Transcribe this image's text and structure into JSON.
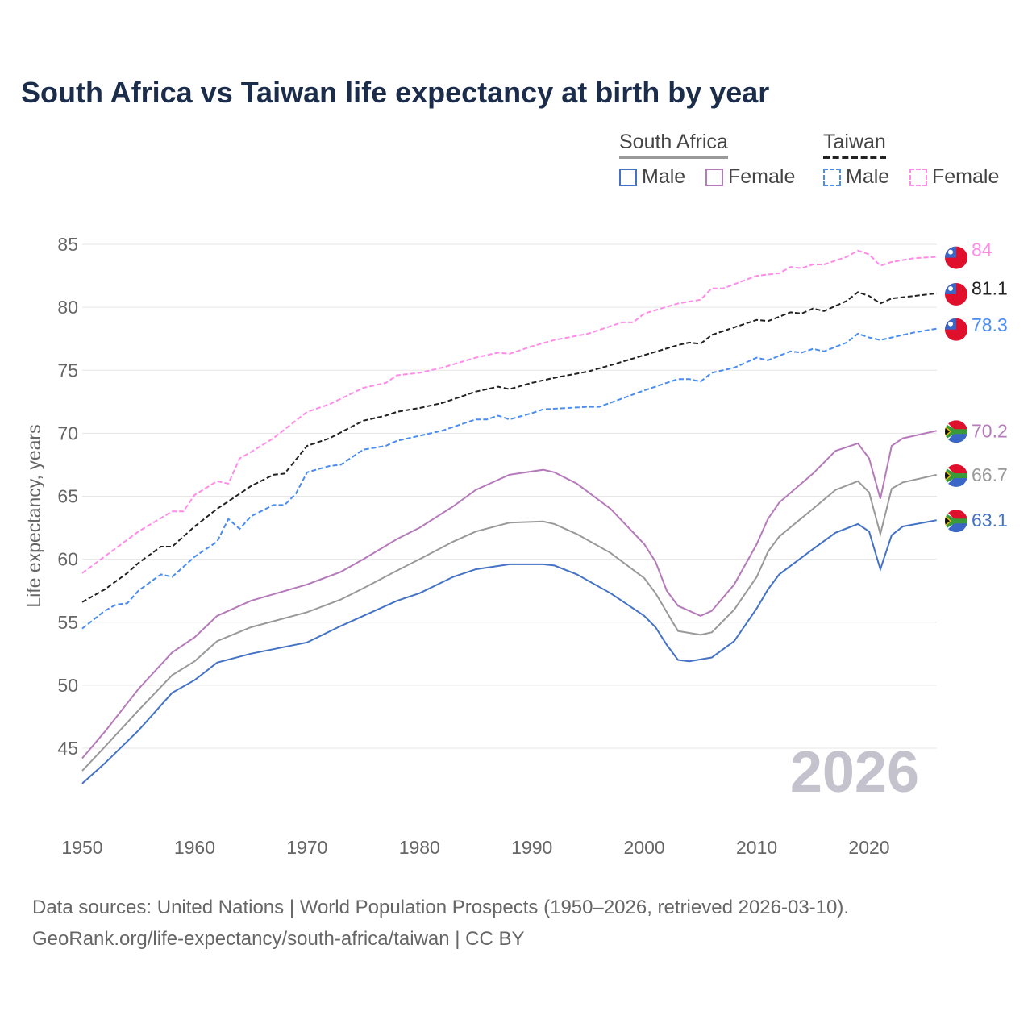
{
  "chart_data": {
    "type": "line",
    "title": "South Africa vs Taiwan life expectancy at birth by year",
    "xlabel": "",
    "ylabel": "Life expectancy, years",
    "xlim": [
      1950,
      2026
    ],
    "ylim": [
      41,
      86
    ],
    "x_ticks": [
      "1950",
      "1960",
      "1970",
      "1980",
      "1990",
      "2000",
      "2010",
      "2020"
    ],
    "y_ticks": [
      "45",
      "50",
      "55",
      "60",
      "65",
      "70",
      "75",
      "80",
      "85"
    ],
    "grid": true,
    "year_watermark": "2026",
    "legend": {
      "position": "top-right",
      "groups": [
        {
          "name": "South Africa",
          "items": [
            "Male",
            "Female"
          ]
        },
        {
          "name": "Taiwan",
          "items": [
            "Male",
            "Female"
          ]
        }
      ]
    },
    "series": [
      {
        "name": "Taiwan Female",
        "country": "Taiwan",
        "color": "#ff8ce8",
        "dashed": true,
        "end_label": "84",
        "points": [
          [
            1950,
            58.9
          ],
          [
            1955,
            62.2
          ],
          [
            1958,
            63.8
          ],
          [
            1959,
            63.8
          ],
          [
            1960,
            65.1
          ],
          [
            1962,
            66.2
          ],
          [
            1963,
            66.0
          ],
          [
            1964,
            68.0
          ],
          [
            1965,
            68.5
          ],
          [
            1967,
            69.6
          ],
          [
            1970,
            71.7
          ],
          [
            1972,
            72.3
          ],
          [
            1975,
            73.6
          ],
          [
            1977,
            74.0
          ],
          [
            1978,
            74.6
          ],
          [
            1980,
            74.8
          ],
          [
            1982,
            75.2
          ],
          [
            1985,
            76.0
          ],
          [
            1987,
            76.4
          ],
          [
            1988,
            76.3
          ],
          [
            1990,
            76.9
          ],
          [
            1992,
            77.4
          ],
          [
            1995,
            77.9
          ],
          [
            1998,
            78.8
          ],
          [
            1999,
            78.8
          ],
          [
            2000,
            79.5
          ],
          [
            2003,
            80.3
          ],
          [
            2005,
            80.6
          ],
          [
            2006,
            81.5
          ],
          [
            2007,
            81.5
          ],
          [
            2010,
            82.5
          ],
          [
            2012,
            82.7
          ],
          [
            2013,
            83.2
          ],
          [
            2014,
            83.1
          ],
          [
            2015,
            83.4
          ],
          [
            2016,
            83.4
          ],
          [
            2018,
            84.0
          ],
          [
            2019,
            84.5
          ],
          [
            2020,
            84.2
          ],
          [
            2021,
            83.3
          ],
          [
            2022,
            83.6
          ],
          [
            2024,
            83.9
          ],
          [
            2026,
            84.0
          ]
        ]
      },
      {
        "name": "Taiwan Total",
        "country": "Taiwan",
        "color": "#222222",
        "dashed": true,
        "end_label": "81.1",
        "points": [
          [
            1950,
            56.6
          ],
          [
            1952,
            57.6
          ],
          [
            1954,
            58.9
          ],
          [
            1955,
            59.7
          ],
          [
            1957,
            61.0
          ],
          [
            1958,
            61.0
          ],
          [
            1960,
            62.6
          ],
          [
            1962,
            64.0
          ],
          [
            1963,
            64.6
          ],
          [
            1965,
            65.8
          ],
          [
            1967,
            66.7
          ],
          [
            1968,
            66.8
          ],
          [
            1970,
            69.0
          ],
          [
            1972,
            69.6
          ],
          [
            1975,
            71.0
          ],
          [
            1977,
            71.4
          ],
          [
            1978,
            71.7
          ],
          [
            1980,
            72.0
          ],
          [
            1982,
            72.4
          ],
          [
            1985,
            73.3
          ],
          [
            1987,
            73.7
          ],
          [
            1988,
            73.5
          ],
          [
            1990,
            74.0
          ],
          [
            1992,
            74.4
          ],
          [
            1995,
            74.9
          ],
          [
            1997,
            75.4
          ],
          [
            2000,
            76.2
          ],
          [
            2003,
            77.0
          ],
          [
            2004,
            77.2
          ],
          [
            2005,
            77.1
          ],
          [
            2006,
            77.8
          ],
          [
            2008,
            78.4
          ],
          [
            2010,
            79.0
          ],
          [
            2011,
            78.9
          ],
          [
            2013,
            79.6
          ],
          [
            2014,
            79.5
          ],
          [
            2015,
            79.9
          ],
          [
            2016,
            79.7
          ],
          [
            2018,
            80.5
          ],
          [
            2019,
            81.2
          ],
          [
            2020,
            80.9
          ],
          [
            2021,
            80.3
          ],
          [
            2022,
            80.7
          ],
          [
            2024,
            80.9
          ],
          [
            2026,
            81.1
          ]
        ]
      },
      {
        "name": "Taiwan Male",
        "country": "Taiwan",
        "color": "#4a8cf0",
        "dashed": true,
        "end_label": "78.3",
        "points": [
          [
            1950,
            54.5
          ],
          [
            1952,
            55.9
          ],
          [
            1953,
            56.4
          ],
          [
            1954,
            56.5
          ],
          [
            1955,
            57.5
          ],
          [
            1957,
            58.8
          ],
          [
            1958,
            58.6
          ],
          [
            1960,
            60.2
          ],
          [
            1962,
            61.4
          ],
          [
            1963,
            63.2
          ],
          [
            1964,
            62.4
          ],
          [
            1965,
            63.4
          ],
          [
            1967,
            64.3
          ],
          [
            1968,
            64.3
          ],
          [
            1969,
            65.2
          ],
          [
            1970,
            66.9
          ],
          [
            1972,
            67.4
          ],
          [
            1973,
            67.5
          ],
          [
            1975,
            68.7
          ],
          [
            1977,
            69.0
          ],
          [
            1978,
            69.4
          ],
          [
            1980,
            69.8
          ],
          [
            1981,
            70.0
          ],
          [
            1982,
            70.2
          ],
          [
            1985,
            71.1
          ],
          [
            1986,
            71.1
          ],
          [
            1987,
            71.4
          ],
          [
            1988,
            71.1
          ],
          [
            1990,
            71.6
          ],
          [
            1991,
            71.9
          ],
          [
            1995,
            72.1
          ],
          [
            1996,
            72.1
          ],
          [
            2000,
            73.4
          ],
          [
            2003,
            74.3
          ],
          [
            2004,
            74.3
          ],
          [
            2005,
            74.1
          ],
          [
            2006,
            74.8
          ],
          [
            2008,
            75.2
          ],
          [
            2010,
            76.0
          ],
          [
            2011,
            75.8
          ],
          [
            2013,
            76.5
          ],
          [
            2014,
            76.4
          ],
          [
            2015,
            76.7
          ],
          [
            2016,
            76.5
          ],
          [
            2018,
            77.2
          ],
          [
            2019,
            77.9
          ],
          [
            2020,
            77.6
          ],
          [
            2021,
            77.4
          ],
          [
            2022,
            77.6
          ],
          [
            2024,
            78.0
          ],
          [
            2026,
            78.3
          ]
        ]
      },
      {
        "name": "South Africa Female",
        "country": "South Africa",
        "color": "#b57aba",
        "dashed": false,
        "end_label": "70.2",
        "points": [
          [
            1950,
            44.2
          ],
          [
            1952,
            46.3
          ],
          [
            1955,
            49.7
          ],
          [
            1958,
            52.6
          ],
          [
            1960,
            53.8
          ],
          [
            1962,
            55.5
          ],
          [
            1965,
            56.7
          ],
          [
            1970,
            58.0
          ],
          [
            1973,
            59.0
          ],
          [
            1975,
            60.0
          ],
          [
            1978,
            61.6
          ],
          [
            1980,
            62.5
          ],
          [
            1983,
            64.2
          ],
          [
            1985,
            65.5
          ],
          [
            1988,
            66.7
          ],
          [
            1991,
            67.1
          ],
          [
            1992,
            66.9
          ],
          [
            1994,
            66.0
          ],
          [
            1997,
            64.0
          ],
          [
            2000,
            61.2
          ],
          [
            2001,
            59.8
          ],
          [
            2002,
            57.5
          ],
          [
            2003,
            56.3
          ],
          [
            2005,
            55.5
          ],
          [
            2006,
            55.9
          ],
          [
            2008,
            58.0
          ],
          [
            2010,
            61.2
          ],
          [
            2011,
            63.2
          ],
          [
            2012,
            64.5
          ],
          [
            2015,
            66.8
          ],
          [
            2017,
            68.6
          ],
          [
            2019,
            69.2
          ],
          [
            2020,
            68.0
          ],
          [
            2021,
            64.8
          ],
          [
            2022,
            69.0
          ],
          [
            2023,
            69.6
          ],
          [
            2026,
            70.2
          ]
        ]
      },
      {
        "name": "South Africa Total",
        "country": "South Africa",
        "color": "#999999",
        "dashed": false,
        "end_label": "66.7",
        "points": [
          [
            1950,
            43.2
          ],
          [
            1952,
            45.1
          ],
          [
            1955,
            48.0
          ],
          [
            1958,
            50.8
          ],
          [
            1960,
            51.9
          ],
          [
            1962,
            53.5
          ],
          [
            1965,
            54.6
          ],
          [
            1970,
            55.8
          ],
          [
            1973,
            56.8
          ],
          [
            1975,
            57.7
          ],
          [
            1978,
            59.1
          ],
          [
            1980,
            60.0
          ],
          [
            1983,
            61.4
          ],
          [
            1985,
            62.2
          ],
          [
            1988,
            62.9
          ],
          [
            1991,
            63.0
          ],
          [
            1992,
            62.8
          ],
          [
            1994,
            62.0
          ],
          [
            1997,
            60.5
          ],
          [
            2000,
            58.5
          ],
          [
            2001,
            57.3
          ],
          [
            2002,
            55.8
          ],
          [
            2003,
            54.3
          ],
          [
            2005,
            54.0
          ],
          [
            2006,
            54.2
          ],
          [
            2008,
            56.0
          ],
          [
            2010,
            58.6
          ],
          [
            2011,
            60.6
          ],
          [
            2012,
            61.8
          ],
          [
            2015,
            64.0
          ],
          [
            2017,
            65.5
          ],
          [
            2019,
            66.2
          ],
          [
            2020,
            65.3
          ],
          [
            2021,
            62.0
          ],
          [
            2022,
            65.6
          ],
          [
            2023,
            66.1
          ],
          [
            2026,
            66.7
          ]
        ]
      },
      {
        "name": "South Africa Male",
        "country": "South Africa",
        "color": "#4472c4",
        "dashed": false,
        "end_label": "63.1",
        "points": [
          [
            1950,
            42.2
          ],
          [
            1952,
            43.8
          ],
          [
            1955,
            46.4
          ],
          [
            1958,
            49.4
          ],
          [
            1960,
            50.4
          ],
          [
            1962,
            51.8
          ],
          [
            1965,
            52.5
          ],
          [
            1970,
            53.4
          ],
          [
            1973,
            54.7
          ],
          [
            1975,
            55.5
          ],
          [
            1978,
            56.7
          ],
          [
            1980,
            57.3
          ],
          [
            1983,
            58.6
          ],
          [
            1985,
            59.2
          ],
          [
            1988,
            59.6
          ],
          [
            1991,
            59.6
          ],
          [
            1992,
            59.5
          ],
          [
            1994,
            58.8
          ],
          [
            1997,
            57.3
          ],
          [
            2000,
            55.5
          ],
          [
            2001,
            54.6
          ],
          [
            2002,
            53.2
          ],
          [
            2003,
            52.0
          ],
          [
            2004,
            51.9
          ],
          [
            2006,
            52.2
          ],
          [
            2008,
            53.5
          ],
          [
            2010,
            56.1
          ],
          [
            2011,
            57.6
          ],
          [
            2012,
            58.8
          ],
          [
            2015,
            60.8
          ],
          [
            2017,
            62.1
          ],
          [
            2019,
            62.8
          ],
          [
            2020,
            62.2
          ],
          [
            2021,
            59.2
          ],
          [
            2022,
            61.9
          ],
          [
            2023,
            62.6
          ],
          [
            2026,
            63.1
          ]
        ]
      }
    ]
  },
  "footer": {
    "line1": "Data sources: United Nations | World Population Prospects (1950–2026, retrieved 2026-03-10).",
    "line2": "GeoRank.org/life-expectancy/south-africa/taiwan | CC BY"
  }
}
